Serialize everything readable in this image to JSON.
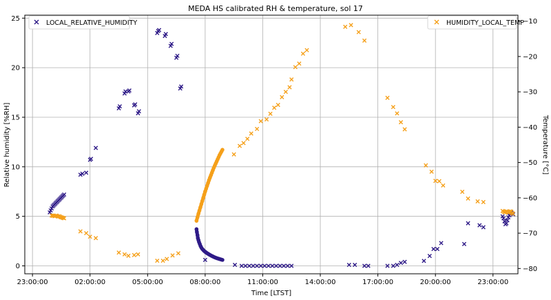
{
  "chart_data": {
    "type": "scatter",
    "title": "MEDA HS calibrated RH & temperature, sol 17",
    "xlabel": "Time [LTST]",
    "ylabel_left": "Relative humidity [%RH]",
    "ylabel_right": "Temperature [°C]",
    "x_unit": "hours LTST",
    "x_ticks": [
      {
        "value": 23,
        "label": "23:00:00"
      },
      {
        "value": 26,
        "label": "02:00:00"
      },
      {
        "value": 29,
        "label": "05:00:00"
      },
      {
        "value": 32,
        "label": "08:00:00"
      },
      {
        "value": 35,
        "label": "11:00:00"
      },
      {
        "value": 38,
        "label": "14:00:00"
      },
      {
        "value": 41,
        "label": "17:00:00"
      },
      {
        "value": 44,
        "label": "20:00:00"
      },
      {
        "value": 47,
        "label": "23:00:00"
      }
    ],
    "xlim": [
      22.6,
      48.3
    ],
    "ylim_left": [
      -0.8,
      25.3
    ],
    "ylim_right": [
      -81.5,
      -8.3
    ],
    "y_ticks_left": [
      0,
      5,
      10,
      15,
      20,
      25
    ],
    "y_ticks_right": [
      -80,
      -70,
      -60,
      -50,
      -40,
      -30,
      -20,
      -10
    ],
    "grid": true,
    "series": [
      {
        "name": "LOCAL_RELATIVE_HUMIDITY",
        "axis": "left",
        "color": "#2e1a87",
        "marker": "x",
        "legend_position": "upper left",
        "points": [
          [
            23.9,
            5.4
          ],
          [
            23.95,
            5.6
          ],
          [
            24.0,
            5.8
          ],
          [
            24.05,
            6.0
          ],
          [
            24.1,
            6.1
          ],
          [
            24.15,
            6.2
          ],
          [
            24.2,
            6.3
          ],
          [
            24.25,
            6.4
          ],
          [
            24.3,
            6.5
          ],
          [
            24.35,
            6.6
          ],
          [
            24.4,
            6.7
          ],
          [
            24.45,
            6.8
          ],
          [
            24.5,
            6.9
          ],
          [
            24.55,
            7.0
          ],
          [
            24.6,
            7.1
          ],
          [
            24.65,
            7.2
          ],
          [
            25.5,
            9.2
          ],
          [
            25.6,
            9.3
          ],
          [
            25.8,
            9.4
          ],
          [
            26.0,
            10.7
          ],
          [
            26.05,
            10.8
          ],
          [
            26.3,
            11.9
          ],
          [
            27.5,
            15.9
          ],
          [
            27.55,
            16.1
          ],
          [
            27.8,
            17.4
          ],
          [
            27.85,
            17.6
          ],
          [
            28.0,
            17.6
          ],
          [
            28.05,
            17.7
          ],
          [
            28.3,
            16.2
          ],
          [
            28.35,
            16.3
          ],
          [
            28.5,
            15.4
          ],
          [
            28.55,
            15.6
          ],
          [
            29.5,
            23.5
          ],
          [
            29.55,
            23.7
          ],
          [
            29.6,
            23.8
          ],
          [
            29.9,
            23.2
          ],
          [
            29.95,
            23.4
          ],
          [
            30.2,
            22.2
          ],
          [
            30.25,
            22.4
          ],
          [
            30.5,
            21.0
          ],
          [
            30.55,
            21.2
          ],
          [
            30.7,
            17.9
          ],
          [
            30.75,
            18.1
          ],
          [
            32.0,
            0.6
          ],
          [
            33.55,
            0.1
          ],
          [
            33.9,
            0.0
          ],
          [
            34.1,
            0.0
          ],
          [
            34.3,
            0.0
          ],
          [
            34.5,
            0.0
          ],
          [
            34.7,
            0.0
          ],
          [
            34.9,
            0.0
          ],
          [
            35.1,
            0.0
          ],
          [
            35.3,
            0.0
          ],
          [
            35.5,
            0.0
          ],
          [
            35.7,
            0.0
          ],
          [
            35.9,
            0.0
          ],
          [
            36.1,
            0.0
          ],
          [
            36.3,
            0.0
          ],
          [
            36.5,
            0.0
          ],
          [
            39.5,
            0.1
          ],
          [
            39.8,
            0.1
          ],
          [
            40.3,
            0.0
          ],
          [
            40.5,
            0.0
          ],
          [
            41.5,
            0.0
          ],
          [
            41.8,
            0.0
          ],
          [
            42.0,
            0.1
          ],
          [
            42.2,
            0.3
          ],
          [
            42.4,
            0.4
          ],
          [
            43.4,
            0.5
          ],
          [
            43.7,
            1.0
          ],
          [
            43.9,
            1.7
          ],
          [
            44.1,
            1.7
          ],
          [
            44.3,
            2.3
          ],
          [
            45.5,
            2.2
          ],
          [
            45.7,
            4.3
          ],
          [
            46.3,
            4.1
          ],
          [
            46.5,
            3.9
          ],
          [
            47.5,
            5.0
          ],
          [
            47.55,
            4.8
          ],
          [
            47.6,
            4.5
          ],
          [
            47.65,
            4.2
          ],
          [
            47.7,
            4.3
          ],
          [
            47.75,
            4.6
          ],
          [
            47.8,
            4.9
          ],
          [
            47.85,
            5.1
          ],
          [
            47.9,
            5.3
          ],
          [
            47.95,
            5.4
          ],
          [
            48.0,
            5.3
          ],
          [
            48.05,
            5.2
          ]
        ],
        "curve": [
          [
            31.55,
            3.7
          ],
          [
            31.57,
            3.4
          ],
          [
            31.6,
            3.1
          ],
          [
            31.62,
            2.8
          ],
          [
            31.65,
            2.6
          ],
          [
            31.68,
            2.4
          ],
          [
            31.72,
            2.2
          ],
          [
            31.76,
            2.0
          ],
          [
            31.8,
            1.85
          ],
          [
            31.85,
            1.7
          ],
          [
            31.9,
            1.6
          ],
          [
            31.95,
            1.5
          ],
          [
            32.0,
            1.42
          ],
          [
            32.05,
            1.35
          ],
          [
            32.1,
            1.28
          ],
          [
            32.15,
            1.22
          ],
          [
            32.2,
            1.16
          ],
          [
            32.25,
            1.1
          ],
          [
            32.3,
            1.05
          ],
          [
            32.35,
            1.0
          ],
          [
            32.4,
            0.95
          ],
          [
            32.45,
            0.9
          ],
          [
            32.5,
            0.86
          ],
          [
            32.55,
            0.82
          ],
          [
            32.6,
            0.78
          ],
          [
            32.65,
            0.75
          ],
          [
            32.7,
            0.72
          ],
          [
            32.75,
            0.69
          ],
          [
            32.8,
            0.66
          ],
          [
            32.85,
            0.63
          ],
          [
            32.9,
            0.6
          ]
        ]
      },
      {
        "name": "HUMIDITY_LOCAL_TEMP",
        "axis": "right",
        "color": "#f5a01a",
        "marker": "x",
        "legend_position": "upper right",
        "points": [
          [
            24.0,
            -65.0
          ],
          [
            24.05,
            -65.1
          ],
          [
            24.1,
            -65.0
          ],
          [
            24.15,
            -65.2
          ],
          [
            24.2,
            -65.1
          ],
          [
            24.25,
            -65.0
          ],
          [
            24.3,
            -65.2
          ],
          [
            24.35,
            -65.3
          ],
          [
            24.4,
            -65.2
          ],
          [
            24.45,
            -65.4
          ],
          [
            24.5,
            -65.5
          ],
          [
            24.55,
            -65.6
          ],
          [
            24.6,
            -65.7
          ],
          [
            24.65,
            -65.8
          ],
          [
            25.5,
            -69.5
          ],
          [
            25.8,
            -70.0
          ],
          [
            26.0,
            -71.0
          ],
          [
            26.3,
            -71.4
          ],
          [
            27.5,
            -75.5
          ],
          [
            27.8,
            -76.0
          ],
          [
            28.0,
            -76.4
          ],
          [
            28.3,
            -76.2
          ],
          [
            28.5,
            -76.0
          ],
          [
            29.5,
            -77.8
          ],
          [
            29.8,
            -77.8
          ],
          [
            30.0,
            -77.3
          ],
          [
            30.3,
            -76.3
          ],
          [
            30.6,
            -75.7
          ],
          [
            33.5,
            -47.7
          ],
          [
            33.8,
            -45.3
          ],
          [
            34.0,
            -44.5
          ],
          [
            34.2,
            -43.3
          ],
          [
            34.4,
            -41.8
          ],
          [
            34.7,
            -40.5
          ],
          [
            34.9,
            -38.3
          ],
          [
            35.2,
            -37.8
          ],
          [
            35.4,
            -36.2
          ],
          [
            35.6,
            -34.5
          ],
          [
            35.8,
            -33.7
          ],
          [
            36.0,
            -31.5
          ],
          [
            36.2,
            -30.0
          ],
          [
            36.4,
            -28.7
          ],
          [
            36.5,
            -26.5
          ],
          [
            36.7,
            -23.0
          ],
          [
            36.9,
            -22.0
          ],
          [
            37.1,
            -19.2
          ],
          [
            37.3,
            -18.2
          ],
          [
            39.3,
            -11.6
          ],
          [
            39.6,
            -11.1
          ],
          [
            40.0,
            -13.1
          ],
          [
            40.3,
            -15.5
          ],
          [
            41.5,
            -31.7
          ],
          [
            41.8,
            -34.3
          ],
          [
            42.0,
            -36.1
          ],
          [
            42.2,
            -38.6
          ],
          [
            42.4,
            -40.6
          ],
          [
            43.5,
            -50.8
          ],
          [
            43.8,
            -52.6
          ],
          [
            44.0,
            -55.2
          ],
          [
            44.2,
            -55.3
          ],
          [
            44.4,
            -56.5
          ],
          [
            45.4,
            -58.3
          ],
          [
            45.7,
            -60.2
          ],
          [
            46.2,
            -61.0
          ],
          [
            46.5,
            -61.2
          ],
          [
            47.5,
            -63.7
          ],
          [
            47.55,
            -63.9
          ],
          [
            47.6,
            -64.1
          ],
          [
            47.65,
            -64.0
          ],
          [
            47.7,
            -63.8
          ],
          [
            47.75,
            -63.9
          ],
          [
            47.8,
            -64.2
          ],
          [
            47.85,
            -64.0
          ],
          [
            47.9,
            -63.8
          ],
          [
            47.95,
            -63.9
          ],
          [
            48.0,
            -64.3
          ],
          [
            48.05,
            -64.5
          ]
        ],
        "curve": [
          [
            31.55,
            -66.5
          ],
          [
            31.6,
            -65.5
          ],
          [
            31.65,
            -64.5
          ],
          [
            31.7,
            -63.6
          ],
          [
            31.75,
            -62.7
          ],
          [
            31.8,
            -61.8
          ],
          [
            31.85,
            -60.9
          ],
          [
            31.9,
            -60.0
          ],
          [
            31.95,
            -59.1
          ],
          [
            32.0,
            -58.2
          ],
          [
            32.05,
            -57.4
          ],
          [
            32.1,
            -56.6
          ],
          [
            32.15,
            -55.8
          ],
          [
            32.2,
            -55.0
          ],
          [
            32.25,
            -54.3
          ],
          [
            32.3,
            -53.6
          ],
          [
            32.35,
            -52.9
          ],
          [
            32.4,
            -52.2
          ],
          [
            32.45,
            -51.5
          ],
          [
            32.5,
            -50.9
          ],
          [
            32.55,
            -50.3
          ],
          [
            32.6,
            -49.7
          ],
          [
            32.65,
            -49.1
          ],
          [
            32.7,
            -48.5
          ],
          [
            32.75,
            -47.9
          ],
          [
            32.8,
            -47.4
          ],
          [
            32.85,
            -46.9
          ],
          [
            32.9,
            -46.4
          ]
        ]
      }
    ]
  }
}
